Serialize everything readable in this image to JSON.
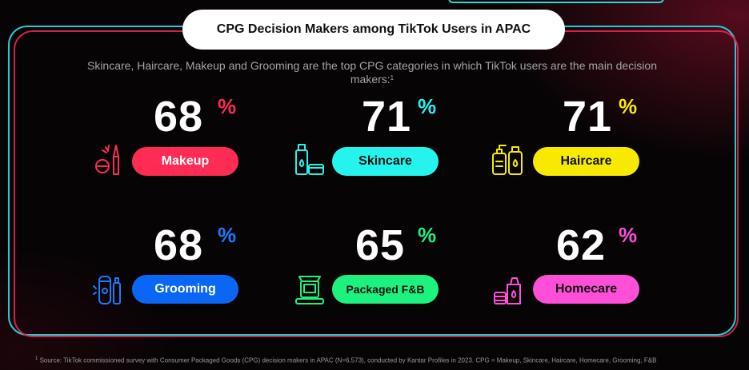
{
  "header": {
    "title": "CPG Decision Makers among TikTok Users in APAC",
    "subtitle": "Skincare, Haircare, Makeup and Grooming are the top CPG categories in which TikTok users are the main decision makers:",
    "subtitle_sup": "1"
  },
  "colors": {
    "makeup": "#fe2c55",
    "skincare": "#25f4ee",
    "haircare": "#f7ea00",
    "grooming": "#0a66f5",
    "packaged": "#1ef27e",
    "homecare": "#ff4fd8"
  },
  "categories": [
    {
      "name": "Makeup",
      "value": "68",
      "unit": "%",
      "icon": "makeup-icon"
    },
    {
      "name": "Skincare",
      "value": "71",
      "unit": "%",
      "icon": "skincare-icon"
    },
    {
      "name": "Haircare",
      "value": "71",
      "unit": "%",
      "icon": "haircare-icon"
    },
    {
      "name": "Grooming",
      "value": "68",
      "unit": "%",
      "icon": "grooming-icon"
    },
    {
      "name": "Packaged F&B",
      "value": "65",
      "unit": "%",
      "icon": "packaged-food-icon"
    },
    {
      "name": "Homecare",
      "value": "62",
      "unit": "%",
      "icon": "homecare-icon"
    }
  ],
  "footnote": {
    "sup": "1",
    "text": " Source: TikTok commissioned survey with Consumer Packaged Goods (CPG) decision makers in APAC (N=6,573), conducted by Kantar Profiles in 2023. CPG = Makeup, Skincare, Haircare, Homecare, Grooming, F&B"
  }
}
